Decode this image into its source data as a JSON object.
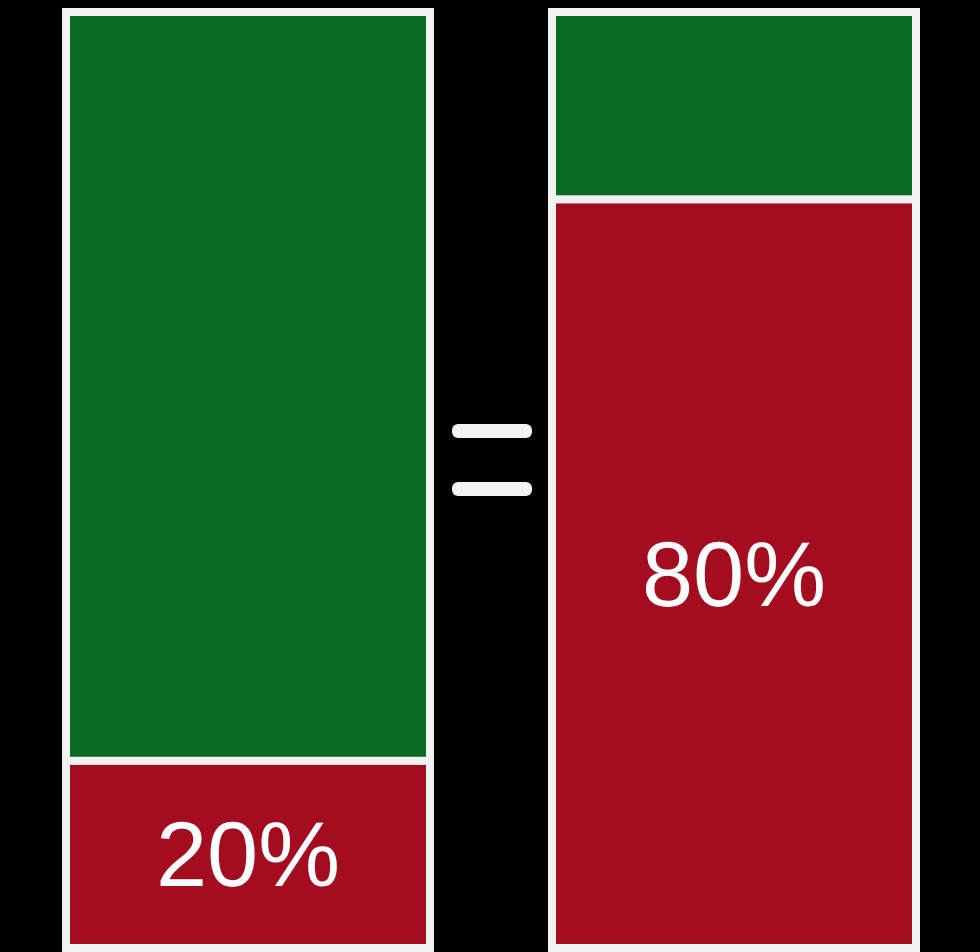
{
  "chart_data": {
    "type": "bar",
    "stacked": true,
    "categories": [
      null,
      null
    ],
    "series": [
      {
        "color": "#a30d1f",
        "values": [
          20,
          80
        ],
        "value_labels": [
          "20%",
          "80%"
        ]
      },
      {
        "color": "#0a6b22",
        "values": [
          80,
          20
        ],
        "value_labels": [
          null,
          null
        ]
      }
    ]
  }
}
